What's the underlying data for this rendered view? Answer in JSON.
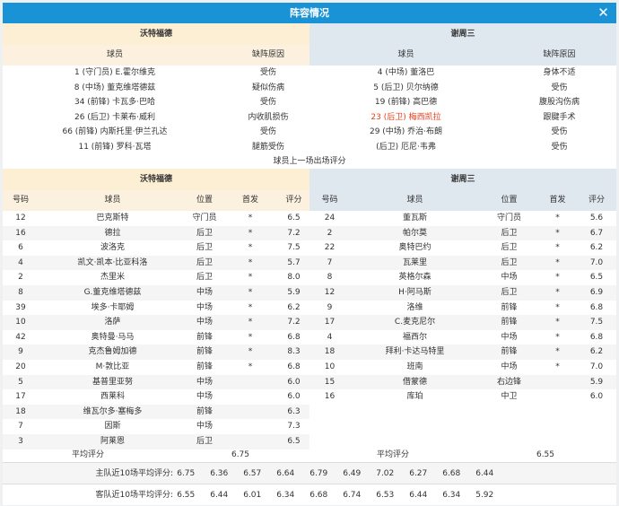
{
  "title": "阵容情况",
  "close_icon": "close-icon",
  "colors": {
    "titlebar": "#1a93d6",
    "home_header": "#fdefd3",
    "away_header": "#dfe7ef",
    "highlight": "#e8401c"
  },
  "injury": {
    "home": {
      "team": "沃特福德",
      "col_player": "球员",
      "col_reason": "缺阵原因",
      "rows": [
        {
          "player": "1 (守门员) E.霍尔维克",
          "reason": "受伤"
        },
        {
          "player": "8 (中场) 董克维塔德兹",
          "reason": "疑似伤病"
        },
        {
          "player": "34 (前锋) 卡瓦多·巴哈",
          "reason": "受伤"
        },
        {
          "player": "26 (后卫) 卡莱布·威利",
          "reason": "内收肌损伤"
        },
        {
          "player": "66 (前锋) 内斯托里·伊兰孔达",
          "reason": "受伤"
        },
        {
          "player": "11 (前锋) 罗科·瓦塔",
          "reason": "腿筋受伤"
        }
      ]
    },
    "away": {
      "team": "谢周三",
      "col_player": "球员",
      "col_reason": "缺阵原因",
      "rows": [
        {
          "player": "4 (中场) 董洛巴",
          "reason": "身体不适"
        },
        {
          "player": "5 (后卫) 贝尔纳德",
          "reason": "受伤"
        },
        {
          "player": "19 (前锋) 高巴德",
          "reason": "腹股沟伤病"
        },
        {
          "player": "23 (后卫) 梅西凯拉",
          "reason": "跟腱手术",
          "highlight": true
        },
        {
          "player": "29 (中场) 乔治·布朗",
          "reason": "受伤"
        },
        {
          "player": "(后卫) 厄尼·韦弗",
          "reason": "受伤"
        }
      ]
    }
  },
  "note": "球员上一场出场评分",
  "lineup": {
    "cols": {
      "num": "号码",
      "player": "球员",
      "pos": "位置",
      "start": "首发",
      "rating": "评分"
    },
    "avg_label": "平均评分",
    "home": {
      "team": "沃特福德",
      "avg": "6.75",
      "rows": [
        [
          "12",
          "巴克斯特",
          "守门员",
          "*",
          "6.5"
        ],
        [
          "16",
          "德拉",
          "后卫",
          "*",
          "7.2"
        ],
        [
          "6",
          "波洛克",
          "后卫",
          "*",
          "7.5"
        ],
        [
          "4",
          "凯文·凯本·比亚科洛",
          "后卫",
          "*",
          "5.7"
        ],
        [
          "2",
          "杰里米",
          "后卫",
          "*",
          "8.0"
        ],
        [
          "8",
          "G.董克维塔德兹",
          "中场",
          "*",
          "5.9"
        ],
        [
          "39",
          "埃多·卡耶姆",
          "中场",
          "*",
          "6.2"
        ],
        [
          "10",
          "洛萨",
          "中场",
          "*",
          "7.2"
        ],
        [
          "42",
          "奥特曼·马马",
          "前锋",
          "*",
          "6.8"
        ],
        [
          "9",
          "克杰鲁姆加德",
          "前锋",
          "*",
          "8.3"
        ],
        [
          "20",
          "M·敦比亚",
          "前锋",
          "*",
          "6.8"
        ],
        [
          "5",
          "基普里亚努",
          "中场",
          "",
          "6.0"
        ],
        [
          "17",
          "西莱科",
          "中场",
          "",
          "6.0"
        ],
        [
          "18",
          "维瓦尔多·塞梅多",
          "前锋",
          "",
          "6.3"
        ],
        [
          "7",
          "因斯",
          "中场",
          "",
          "7.3"
        ],
        [
          "3",
          "阿莱恩",
          "后卫",
          "",
          "6.5"
        ]
      ]
    },
    "away": {
      "team": "谢周三",
      "avg": "6.55",
      "rows": [
        [
          "24",
          "董瓦斯",
          "守门员",
          "*",
          "5.6"
        ],
        [
          "2",
          "帕尔莫",
          "后卫",
          "*",
          "6.7"
        ],
        [
          "22",
          "奥特巴约",
          "后卫",
          "*",
          "6.2"
        ],
        [
          "7",
          "瓦莱里",
          "后卫",
          "*",
          "7.0"
        ],
        [
          "8",
          "英格尔森",
          "中场",
          "*",
          "6.5"
        ],
        [
          "12",
          "H·阿马斯",
          "后卫",
          "*",
          "6.9"
        ],
        [
          "9",
          "洛维",
          "前锋",
          "*",
          "6.8"
        ],
        [
          "17",
          "C.麦克尼尔",
          "前锋",
          "*",
          "7.5"
        ],
        [
          "4",
          "福西尔",
          "中场",
          "*",
          "6.8"
        ],
        [
          "18",
          "拜利·卡达马特里",
          "前锋",
          "*",
          "6.2"
        ],
        [
          "10",
          "班南",
          "中场",
          "*",
          "7.0"
        ],
        [
          "15",
          "借蒙德",
          "右边锋",
          "",
          "5.9"
        ],
        [
          "16",
          "库珀",
          "中卫",
          "",
          "6.0"
        ]
      ]
    }
  },
  "recent": {
    "home_label": "主队近10场平均评分:",
    "home": [
      "6.75",
      "6.36",
      "6.57",
      "6.64",
      "6.79",
      "6.49",
      "7.02",
      "6.27",
      "6.68",
      "6.44"
    ],
    "away_label": "客队近10场平均评分:",
    "away": [
      "6.55",
      "6.44",
      "6.01",
      "6.34",
      "6.68",
      "6.74",
      "6.53",
      "6.44",
      "6.34",
      "5.92"
    ]
  }
}
